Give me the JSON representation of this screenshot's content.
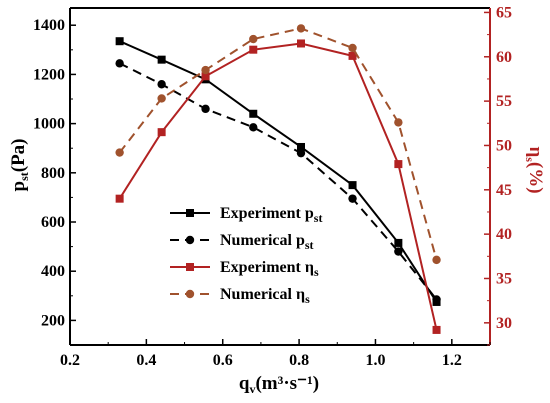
{
  "chart_data": {
    "type": "line",
    "x_axis": {
      "label_main": "q",
      "label_sub": "v",
      "label_rest": "(m³·s⁻¹)",
      "range": [
        0.2,
        1.3
      ],
      "ticks": [
        "0.2",
        "0.4",
        "0.6",
        "0.8",
        "1.0",
        "1.2"
      ]
    },
    "y_left": {
      "label_main": "p",
      "label_sub": "st",
      "label_rest": "(Pa)",
      "range": [
        100,
        1470
      ],
      "ticks": [
        "200",
        "400",
        "600",
        "800",
        "1000",
        "1200",
        "1400"
      ],
      "color": "#000000"
    },
    "y_right": {
      "label_main": "η",
      "label_sub": "s",
      "label_rest": "(%)",
      "range": [
        27.5,
        65.5
      ],
      "ticks": [
        "30",
        "35",
        "40",
        "45",
        "50",
        "55",
        "60",
        "65"
      ],
      "color": "#b22222"
    },
    "legend_position": "center-left",
    "series": [
      {
        "name_main": "Experiment p",
        "name_sub": "st",
        "axis": "left",
        "color": "#000000",
        "dash": "solid",
        "marker": "square",
        "x": [
          0.33,
          0.44,
          0.555,
          0.68,
          0.805,
          0.94,
          1.06,
          1.16
        ],
        "y": [
          1335,
          1260,
          1180,
          1040,
          905,
          750,
          515,
          275
        ]
      },
      {
        "name_main": "Numerical p",
        "name_sub": "st",
        "axis": "left",
        "color": "#000000",
        "dash": "dashed",
        "marker": "circle",
        "x": [
          0.33,
          0.44,
          0.555,
          0.68,
          0.805,
          0.94,
          1.06,
          1.16
        ],
        "y": [
          1245,
          1160,
          1060,
          985,
          880,
          695,
          480,
          285
        ]
      },
      {
        "name_main": "Experiment η",
        "name_sub": "s",
        "axis": "right",
        "color": "#b22222",
        "dash": "solid",
        "marker": "square",
        "x": [
          0.33,
          0.44,
          0.555,
          0.68,
          0.805,
          0.94,
          1.06,
          1.16
        ],
        "y": [
          44.0,
          51.5,
          57.8,
          60.8,
          61.5,
          60.1,
          47.9,
          29.2
        ]
      },
      {
        "name_main": "Numerical η",
        "name_sub": "s",
        "axis": "right",
        "color": "#a0522d",
        "dash": "dashed",
        "marker": "circle",
        "x": [
          0.33,
          0.44,
          0.555,
          0.68,
          0.805,
          0.94,
          1.06,
          1.16
        ],
        "y": [
          49.2,
          55.3,
          58.5,
          62.0,
          63.2,
          61.0,
          52.6,
          37.1
        ]
      }
    ]
  }
}
